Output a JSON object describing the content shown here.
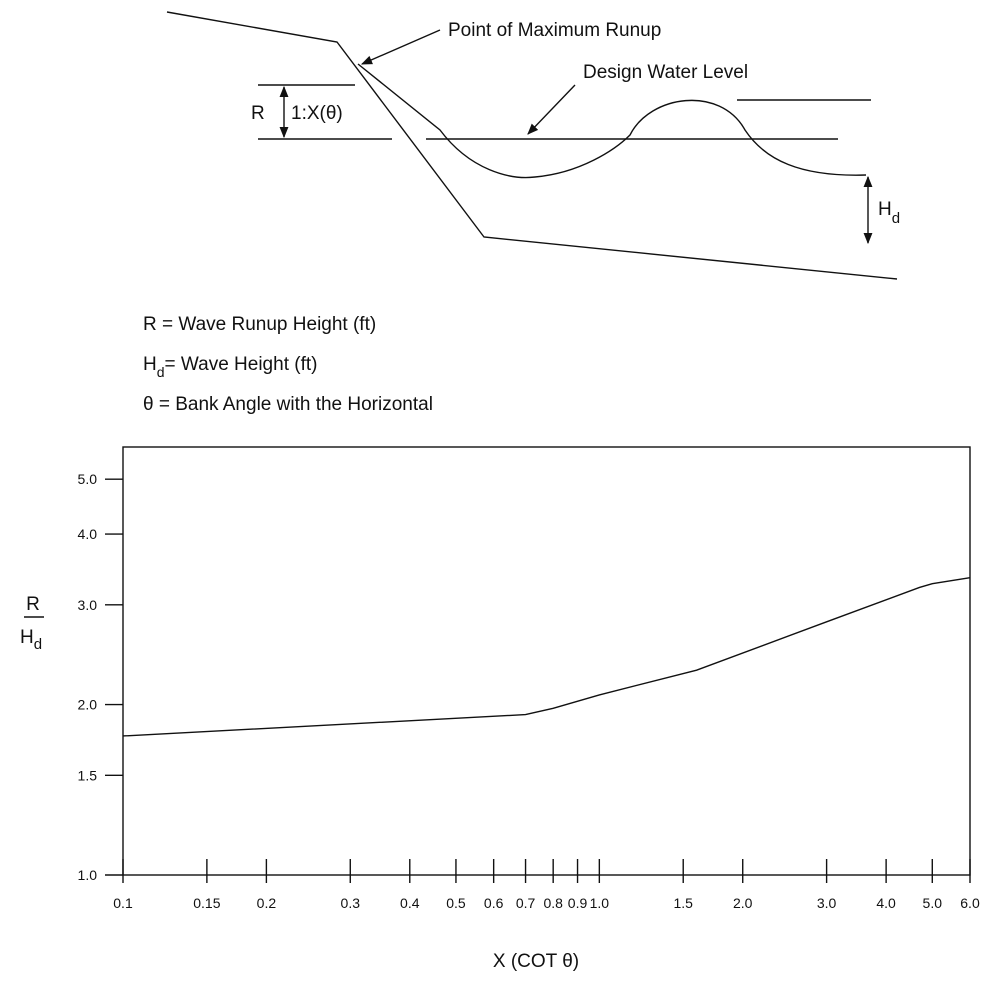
{
  "diagram": {
    "point_label": "Point of Maximum Runup",
    "water_label": "Design Water Level",
    "r_label": "R",
    "slope_label": "1:X(θ)",
    "hd_main": "H",
    "hd_sub": "d"
  },
  "definitions": {
    "r_def": "R = Wave Runup Height (ft)",
    "hd_main": "H",
    "hd_sub": "d",
    "hd_def": "= Wave Height (ft)",
    "theta_def": "θ = Bank Angle with the Horizontal"
  },
  "chart_data": {
    "type": "line",
    "log_x": true,
    "log_y": true,
    "grid": false,
    "color": "#111111",
    "x_label": "X (COT θ)",
    "y_label": {
      "numerator": "R",
      "denominator": "H",
      "denominator_sub": "d"
    },
    "x": [
      0.1,
      0.7,
      0.8,
      1.0,
      1.6,
      3.0,
      4.7,
      5.0,
      6.0
    ],
    "values": [
      1.76,
      1.92,
      1.97,
      2.08,
      2.3,
      2.8,
      3.22,
      3.27,
      3.35
    ],
    "xlim": [
      0.1,
      6.0
    ],
    "ylim": [
      1.0,
      5.7
    ],
    "xticks": [
      0.1,
      0.15,
      0.2,
      0.3,
      0.4,
      0.5,
      0.6,
      0.7,
      0.8,
      0.9,
      {
        "value": 1,
        "label": "1.0"
      },
      1.5,
      {
        "value": 2,
        "label": "2.0"
      },
      {
        "value": 3,
        "label": "3.0"
      },
      {
        "value": 4,
        "label": "4.0"
      },
      {
        "value": 5,
        "label": "5.0"
      },
      {
        "value": 6,
        "label": "6.0"
      }
    ],
    "yticks": [
      {
        "value": 1,
        "label": "1.0"
      },
      1.5,
      {
        "value": 2,
        "label": "2.0"
      },
      {
        "value": 3,
        "label": "3.0"
      },
      {
        "value": 4,
        "label": "4.0"
      },
      {
        "value": 5,
        "label": "5.0"
      }
    ]
  }
}
